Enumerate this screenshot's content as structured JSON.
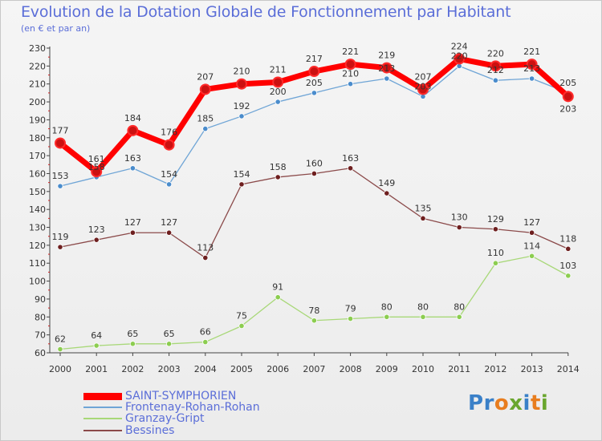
{
  "header": {
    "title": "Evolution de la Dotation Globale de Fonctionnement par Habitant",
    "subtitle": "(en € et par an)"
  },
  "logo": {
    "text": "Proxiti",
    "letters": [
      "P",
      "r",
      "o",
      "x",
      "i",
      "t",
      "i"
    ],
    "colors": [
      "#3a80c8",
      "#3a80c8",
      "#e87d1e",
      "#6aa62e",
      "#3a80c8",
      "#e87d1e",
      "#6aa62e"
    ]
  },
  "chart_data": {
    "type": "line",
    "title": "Evolution de la Dotation Globale de Fonctionnement par Habitant",
    "subtitle": "(en € et par an)",
    "xlabel": "",
    "ylabel": "",
    "x": [
      "2000",
      "2001",
      "2002",
      "2003",
      "2004",
      "2005",
      "2006",
      "2007",
      "2008",
      "2009",
      "2010",
      "2011",
      "2012",
      "2013",
      "2014"
    ],
    "ylim": [
      60,
      230
    ],
    "yticks": [
      60,
      70,
      80,
      90,
      100,
      110,
      120,
      130,
      140,
      150,
      160,
      170,
      180,
      190,
      200,
      210,
      220,
      230
    ],
    "grid": false,
    "legend_position": "bottom-left",
    "series": [
      {
        "name": "SAINT-SYMPHORIEN",
        "color": "#ff0000",
        "marker_fill": "#cc1111",
        "line_style": "thick",
        "label_dy": [
          -1,
          -1,
          -1,
          -1,
          -1,
          -1,
          -1,
          -1,
          -1,
          -1,
          -1,
          -1,
          -1,
          -1,
          1
        ],
        "values": [
          177,
          161,
          184,
          176,
          207,
          210,
          211,
          217,
          221,
          219,
          207,
          224,
          220,
          221,
          203
        ]
      },
      {
        "name": "Frontenay-Rohan-Rohan",
        "color": "#6fa5d6",
        "marker_fill": "#4a8ccc",
        "line_style": "thin",
        "label_dy": [
          -1,
          -1,
          -1,
          -1,
          -1,
          -1,
          -1,
          -1,
          -1,
          -1,
          -1,
          -1,
          -1,
          -1,
          -1
        ],
        "values": [
          153,
          158,
          163,
          154,
          185,
          192,
          200,
          205,
          210,
          213,
          203,
          220,
          212,
          213,
          205
        ]
      },
      {
        "name": "Granzay-Gript",
        "color": "#a8d878",
        "marker_fill": "#8ccd50",
        "line_style": "thin",
        "label_dy": [
          -1,
          -1,
          -1,
          -1,
          -1,
          -1,
          -1,
          -1,
          -1,
          -1,
          -1,
          -1,
          -1,
          -1,
          -1
        ],
        "values": [
          62,
          64,
          65,
          65,
          66,
          75,
          91,
          78,
          79,
          80,
          80,
          80,
          110,
          114,
          103
        ]
      },
      {
        "name": "Bessines",
        "color": "#8b4a4a",
        "marker_fill": "#6e1f1f",
        "line_style": "thin",
        "label_dy": [
          -1,
          -1,
          -1,
          -1,
          -1,
          -1,
          -1,
          -1,
          -1,
          -1,
          -1,
          -1,
          -1,
          -1,
          -1
        ],
        "values": [
          119,
          123,
          127,
          127,
          113,
          154,
          158,
          160,
          163,
          149,
          135,
          130,
          129,
          127,
          118
        ]
      }
    ]
  }
}
